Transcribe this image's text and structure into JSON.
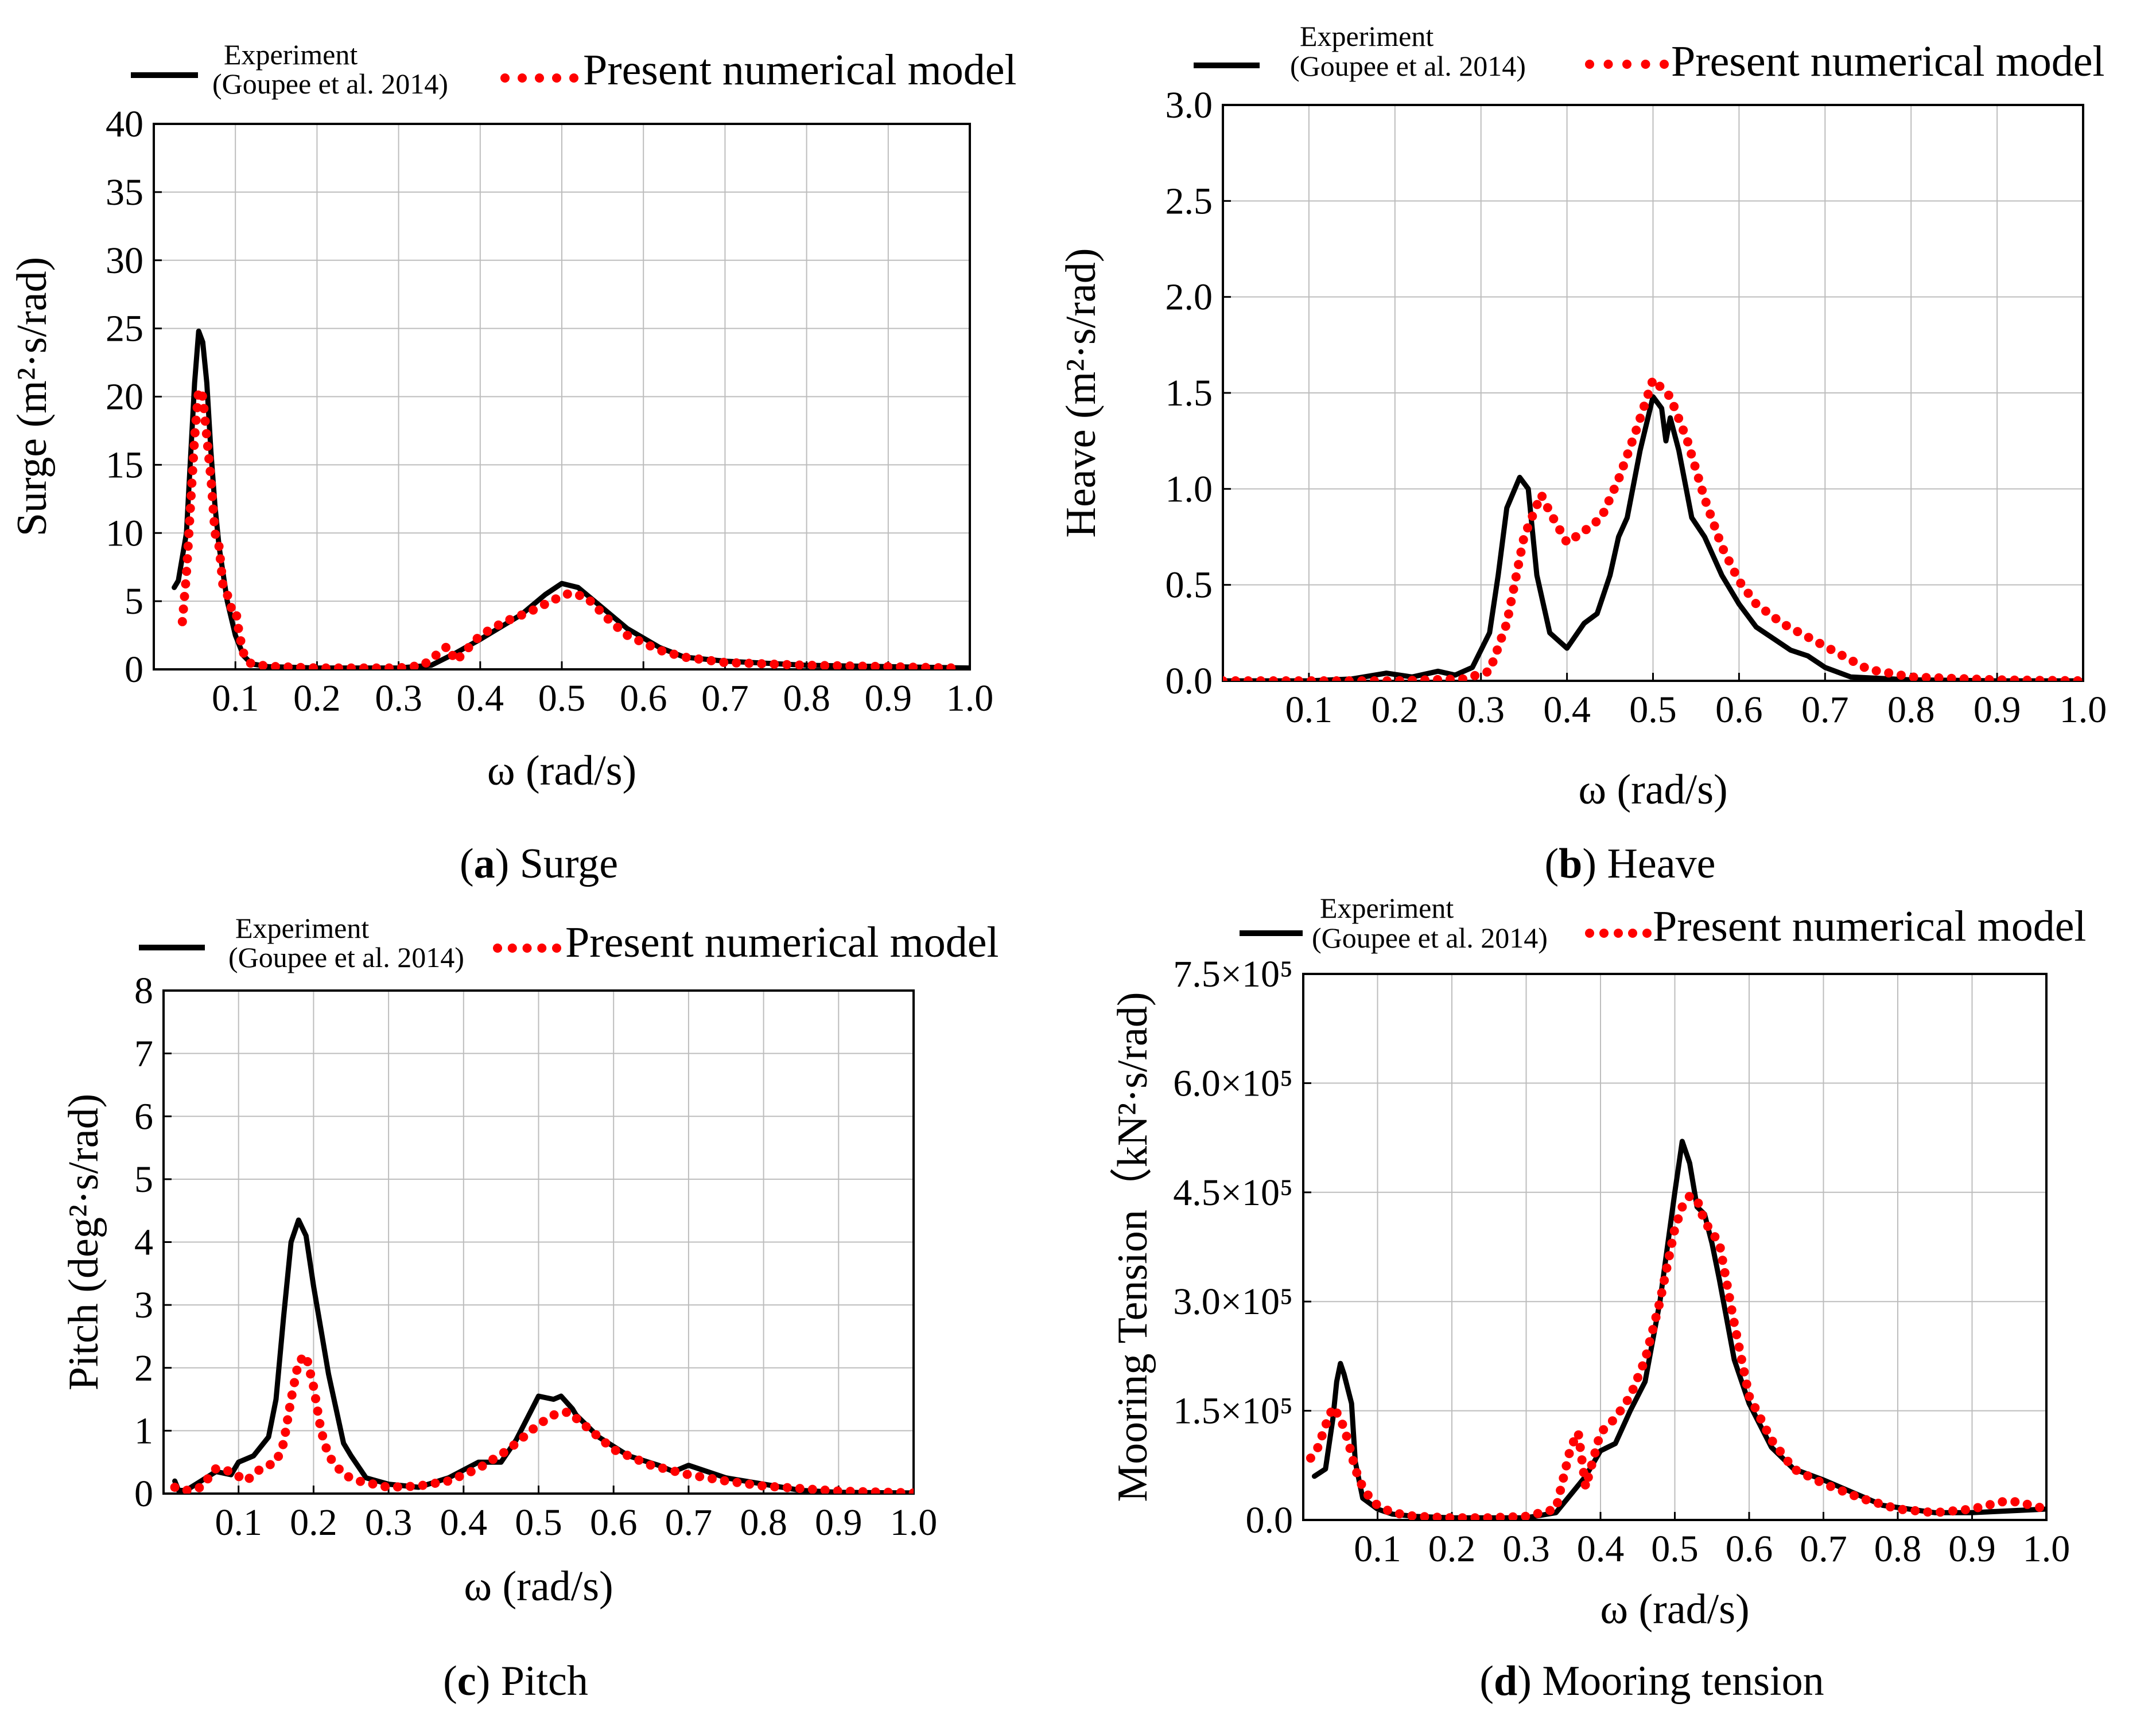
{
  "legend": {
    "experiment_line1": "Experiment",
    "experiment_line2": "(Goupee et al. 2014)",
    "numerical": "Present numerical model"
  },
  "colors": {
    "experiment": "#000000",
    "numerical": "#ff0000",
    "grid": "#bdbdbd"
  },
  "chart_data": [
    {
      "id": "a",
      "type": "line",
      "caption_letter": "a",
      "caption_text": "Surge",
      "xlabel": "ω (rad/s)",
      "ylabel": "Surge (m²·s/rad)",
      "xlim": [
        0.0,
        1.0
      ],
      "ylim": [
        0,
        40
      ],
      "xticks": [
        0.1,
        0.2,
        0.3,
        0.4,
        0.5,
        0.6,
        0.7,
        0.8,
        0.9,
        1.0
      ],
      "xtick_labels": [
        "0.1",
        "0.2",
        "0.3",
        "0.4",
        "0.5",
        "0.6",
        "0.7",
        "0.8",
        "0.9",
        "1.0"
      ],
      "yticks": [
        0,
        5,
        10,
        15,
        20,
        25,
        30,
        35,
        40
      ],
      "ytick_labels": [
        "0",
        "5",
        "10",
        "15",
        "20",
        "25",
        "30",
        "35",
        "40"
      ],
      "series": [
        {
          "name": "Experiment (Goupee et al. 2014)",
          "style": "solid",
          "x": [
            0.025,
            0.03,
            0.04,
            0.05,
            0.055,
            0.06,
            0.065,
            0.07,
            0.075,
            0.08,
            0.09,
            0.1,
            0.11,
            0.12,
            0.14,
            0.2,
            0.3,
            0.34,
            0.37,
            0.4,
            0.45,
            0.48,
            0.5,
            0.52,
            0.55,
            0.58,
            0.62,
            0.65,
            0.7,
            0.8,
            0.9,
            1.0
          ],
          "y": [
            6,
            6.5,
            10,
            21,
            24.8,
            24,
            21,
            16,
            12,
            9,
            5,
            2.5,
            1,
            0.4,
            0.2,
            0.1,
            0.1,
            0.3,
            1.2,
            2.2,
            4,
            5.5,
            6.3,
            6,
            4.5,
            3,
            1.6,
            0.9,
            0.6,
            0.3,
            0.2,
            0.1
          ]
        },
        {
          "name": "Present numerical model",
          "style": "dotted",
          "x": [
            0.035,
            0.04,
            0.045,
            0.05,
            0.055,
            0.06,
            0.065,
            0.07,
            0.075,
            0.08,
            0.085,
            0.09,
            0.095,
            0.1,
            0.105,
            0.11,
            0.115,
            0.12,
            0.13,
            0.15,
            0.2,
            0.25,
            0.3,
            0.33,
            0.36,
            0.37,
            0.4,
            0.43,
            0.46,
            0.49,
            0.51,
            0.53,
            0.56,
            0.58,
            0.62,
            0.65,
            0.7,
            0.8,
            0.9,
            0.98
          ],
          "y": [
            3.5,
            7,
            12,
            17,
            20.5,
            20,
            17,
            14,
            10,
            9,
            6,
            5.5,
            4.5,
            4.5,
            2.5,
            1.2,
            0.6,
            0.4,
            0.3,
            0.2,
            0.1,
            0.1,
            0.1,
            0.3,
            1.7,
            0.6,
            2.5,
            3.5,
            4.2,
            5.1,
            5.6,
            5.3,
            3.5,
            2.5,
            1.4,
            0.9,
            0.5,
            0.3,
            0.2,
            0.1
          ]
        }
      ]
    },
    {
      "id": "b",
      "type": "line",
      "caption_letter": "b",
      "caption_text": "Heave",
      "xlabel": "ω (rad/s)",
      "ylabel": "Heave (m²·s/rad)",
      "xlim": [
        0.0,
        1.0
      ],
      "ylim": [
        0,
        3.0
      ],
      "xticks": [
        0.1,
        0.2,
        0.3,
        0.4,
        0.5,
        0.6,
        0.7,
        0.8,
        0.9,
        1.0
      ],
      "xtick_labels": [
        "0.1",
        "0.2",
        "0.3",
        "0.4",
        "0.5",
        "0.6",
        "0.7",
        "0.8",
        "0.9",
        "1.0"
      ],
      "yticks": [
        0,
        0.5,
        1.0,
        1.5,
        2.0,
        2.5,
        3.0
      ],
      "ytick_labels": [
        "0.0",
        "0.5",
        "1.0",
        "1.5",
        "2.0",
        "2.5",
        "3.0"
      ],
      "series": [
        {
          "name": "Experiment (Goupee et al. 2014)",
          "style": "solid",
          "x": [
            0.0,
            0.1,
            0.15,
            0.19,
            0.22,
            0.25,
            0.27,
            0.29,
            0.31,
            0.32,
            0.33,
            0.345,
            0.355,
            0.365,
            0.38,
            0.4,
            0.42,
            0.435,
            0.45,
            0.46,
            0.47,
            0.485,
            0.5,
            0.51,
            0.515,
            0.52,
            0.53,
            0.545,
            0.56,
            0.58,
            0.6,
            0.62,
            0.64,
            0.66,
            0.68,
            0.7,
            0.73,
            0.8,
            0.9,
            1.0
          ],
          "y": [
            0,
            0,
            0.01,
            0.04,
            0.02,
            0.05,
            0.03,
            0.07,
            0.25,
            0.55,
            0.9,
            1.06,
            1.0,
            0.55,
            0.25,
            0.17,
            0.3,
            0.35,
            0.55,
            0.75,
            0.85,
            1.2,
            1.48,
            1.42,
            1.25,
            1.37,
            1.2,
            0.85,
            0.75,
            0.55,
            0.4,
            0.28,
            0.22,
            0.16,
            0.13,
            0.07,
            0.02,
            0.005,
            0,
            0
          ]
        },
        {
          "name": "Present numerical model",
          "style": "dotted",
          "x": [
            0.0,
            0.1,
            0.2,
            0.28,
            0.31,
            0.33,
            0.35,
            0.37,
            0.38,
            0.4,
            0.42,
            0.44,
            0.46,
            0.48,
            0.5,
            0.52,
            0.54,
            0.56,
            0.58,
            0.6,
            0.62,
            0.65,
            0.7,
            0.75,
            0.8,
            0.9,
            1.0
          ],
          "y": [
            0,
            0,
            0,
            0.01,
            0.05,
            0.3,
            0.75,
            0.97,
            0.88,
            0.72,
            0.78,
            0.85,
            1.05,
            1.3,
            1.57,
            1.48,
            1.25,
            0.95,
            0.7,
            0.52,
            0.4,
            0.3,
            0.18,
            0.06,
            0.02,
            0.005,
            0
          ]
        }
      ]
    },
    {
      "id": "c",
      "type": "line",
      "caption_letter": "c",
      "caption_text": "Pitch",
      "xlabel": "ω (rad/s)",
      "ylabel": "Pitch (deg²·s/rad)",
      "xlim": [
        0.0,
        1.0
      ],
      "ylim": [
        0,
        8
      ],
      "xticks": [
        0.1,
        0.2,
        0.3,
        0.4,
        0.5,
        0.6,
        0.7,
        0.8,
        0.9,
        1.0
      ],
      "xtick_labels": [
        "0.1",
        "0.2",
        "0.3",
        "0.4",
        "0.5",
        "0.6",
        "0.7",
        "0.8",
        "0.9",
        "1.0"
      ],
      "yticks": [
        0,
        1,
        2,
        3,
        4,
        5,
        6,
        7,
        8
      ],
      "ytick_labels": [
        "0",
        "1",
        "2",
        "3",
        "4",
        "5",
        "6",
        "7",
        "8"
      ],
      "series": [
        {
          "name": "Experiment (Goupee et al. 2014)",
          "style": "solid",
          "x": [
            0.015,
            0.02,
            0.03,
            0.05,
            0.07,
            0.09,
            0.1,
            0.12,
            0.14,
            0.15,
            0.16,
            0.17,
            0.18,
            0.19,
            0.2,
            0.21,
            0.22,
            0.24,
            0.25,
            0.27,
            0.3,
            0.34,
            0.38,
            0.42,
            0.45,
            0.47,
            0.5,
            0.52,
            0.53,
            0.545,
            0.55,
            0.58,
            0.62,
            0.66,
            0.68,
            0.7,
            0.75,
            0.8,
            0.85,
            0.9,
            1.0
          ],
          "y": [
            0.2,
            0.05,
            0.05,
            0.2,
            0.35,
            0.3,
            0.5,
            0.6,
            0.9,
            1.5,
            2.8,
            4,
            4.35,
            4.1,
            3.3,
            2.6,
            1.9,
            0.8,
            0.6,
            0.25,
            0.15,
            0.1,
            0.25,
            0.5,
            0.5,
            0.85,
            1.55,
            1.5,
            1.55,
            1.35,
            1.25,
            0.9,
            0.6,
            0.45,
            0.35,
            0.45,
            0.25,
            0.15,
            0.05,
            0.02,
            0.01
          ]
        },
        {
          "name": "Present numerical model",
          "style": "dotted",
          "x": [
            0.015,
            0.03,
            0.05,
            0.07,
            0.09,
            0.11,
            0.13,
            0.15,
            0.16,
            0.17,
            0.18,
            0.19,
            0.2,
            0.21,
            0.22,
            0.24,
            0.26,
            0.28,
            0.3,
            0.34,
            0.38,
            0.42,
            0.46,
            0.48,
            0.5,
            0.52,
            0.54,
            0.56,
            0.6,
            0.65,
            0.7,
            0.75,
            0.8,
            0.9,
            1.0
          ],
          "y": [
            0.1,
            0.05,
            0.1,
            0.4,
            0.35,
            0.2,
            0.4,
            0.5,
            0.8,
            1.5,
            2.1,
            2.2,
            1.7,
            1.0,
            0.6,
            0.3,
            0.2,
            0.15,
            0.1,
            0.12,
            0.2,
            0.4,
            0.7,
            0.9,
            1.1,
            1.25,
            1.3,
            1.1,
            0.7,
            0.45,
            0.3,
            0.2,
            0.12,
            0.04,
            0.01
          ]
        }
      ]
    },
    {
      "id": "d",
      "type": "line",
      "caption_letter": "d",
      "caption_text": "Mooring tension",
      "xlabel": "ω (rad/s)",
      "ylabel": "Mooring Tension（kN²·s/rad)",
      "xlim": [
        0.0,
        1.0
      ],
      "ylim": [
        0,
        750000
      ],
      "xticks": [
        0.1,
        0.2,
        0.3,
        0.4,
        0.5,
        0.6,
        0.7,
        0.8,
        0.9,
        1.0
      ],
      "xtick_labels": [
        "0.1",
        "0.2",
        "0.3",
        "0.4",
        "0.5",
        "0.6",
        "0.7",
        "0.8",
        "0.9",
        "1.0"
      ],
      "yticks": [
        0,
        150000,
        300000,
        450000,
        600000,
        750000
      ],
      "ytick_labels": [
        "0.0",
        "1.5×10⁵",
        "3.0×10⁵",
        "4.5×10⁵",
        "6.0×10⁵",
        "7.5×10⁵"
      ],
      "series": [
        {
          "name": "Experiment (Goupee et al. 2014)",
          "style": "solid",
          "x": [
            0.015,
            0.03,
            0.04,
            0.045,
            0.05,
            0.055,
            0.065,
            0.07,
            0.08,
            0.1,
            0.12,
            0.15,
            0.2,
            0.3,
            0.34,
            0.36,
            0.38,
            0.4,
            0.42,
            0.44,
            0.46,
            0.48,
            0.5,
            0.51,
            0.52,
            0.53,
            0.54,
            0.55,
            0.56,
            0.58,
            0.6,
            0.63,
            0.66,
            0.7,
            0.78,
            0.85,
            0.9,
            1.0
          ],
          "y": [
            60000,
            70000,
            140000,
            190000,
            215000,
            200000,
            160000,
            80000,
            30000,
            15000,
            8000,
            5000,
            3000,
            3000,
            10000,
            35000,
            60000,
            95000,
            105000,
            150000,
            190000,
            300000,
            450000,
            520000,
            490000,
            430000,
            420000,
            380000,
            330000,
            220000,
            160000,
            100000,
            70000,
            55000,
            20000,
            10000,
            10000,
            15000
          ]
        },
        {
          "name": "Present numerical model",
          "style": "dotted",
          "x": [
            0.01,
            0.02,
            0.03,
            0.04,
            0.05,
            0.06,
            0.07,
            0.08,
            0.09,
            0.1,
            0.12,
            0.15,
            0.2,
            0.25,
            0.3,
            0.34,
            0.36,
            0.37,
            0.38,
            0.4,
            0.42,
            0.44,
            0.46,
            0.48,
            0.5,
            0.51,
            0.52,
            0.53,
            0.54,
            0.56,
            0.58,
            0.6,
            0.63,
            0.66,
            0.7,
            0.75,
            0.8,
            0.85,
            0.9,
            0.94,
            0.96,
            1.0
          ],
          "y": [
            85000,
            100000,
            130000,
            155000,
            140000,
            110000,
            70000,
            45000,
            30000,
            20000,
            10000,
            5000,
            3000,
            3000,
            5000,
            15000,
            100000,
            120000,
            45000,
            120000,
            140000,
            170000,
            220000,
            300000,
            400000,
            430000,
            445000,
            440000,
            410000,
            380000,
            270000,
            170000,
            110000,
            70000,
            50000,
            30000,
            15000,
            10000,
            15000,
            25000,
            25000,
            15000
          ]
        }
      ]
    }
  ]
}
